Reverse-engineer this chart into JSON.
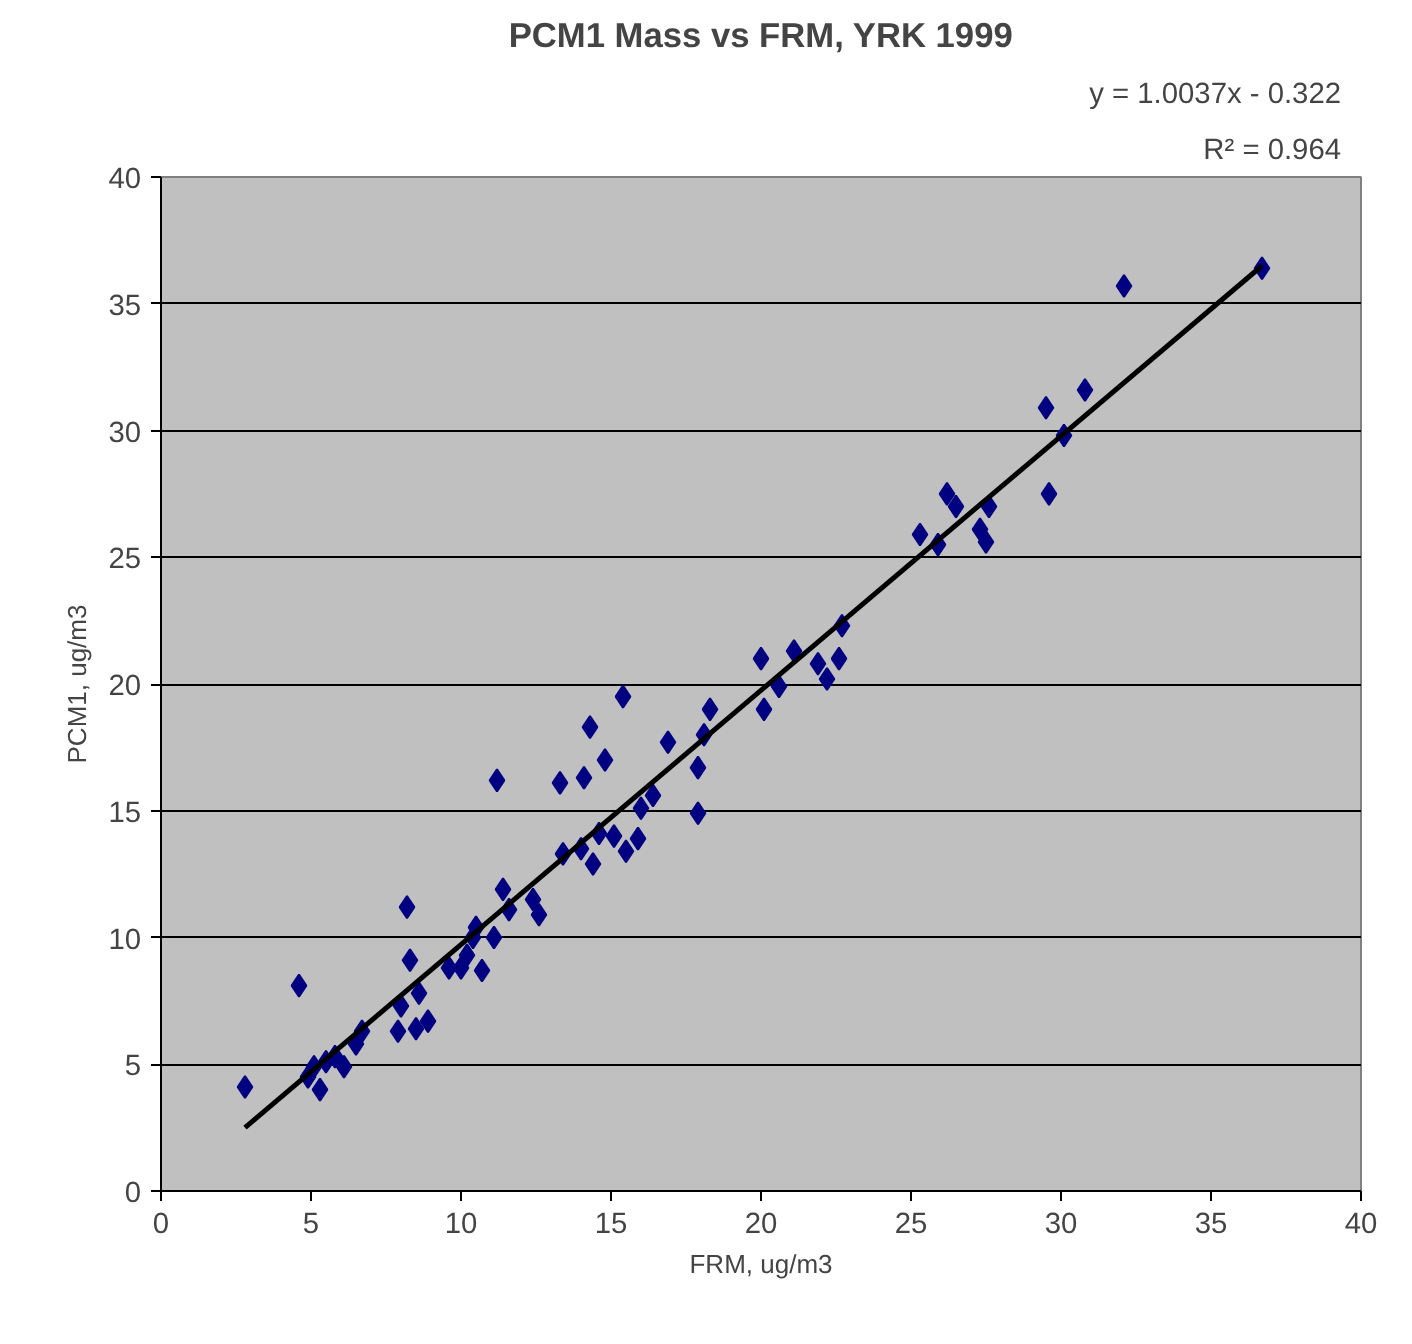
{
  "chart_data": {
    "type": "scatter",
    "title": "PCM1 Mass vs FRM, YRK 1999",
    "xlabel": "FRM, ug/m3",
    "ylabel": "PCM1, ug/m3",
    "annotations": [
      "y = 1.0037x - 0.322",
      "R² = 0.964"
    ],
    "xlim": [
      0,
      40
    ],
    "ylim": [
      0,
      40
    ],
    "xticks": [
      0,
      5,
      10,
      15,
      20,
      25,
      30,
      35,
      40
    ],
    "yticks": [
      0,
      5,
      10,
      15,
      20,
      25,
      30,
      35,
      40
    ],
    "grid": "y",
    "marker": "diamond",
    "series": [
      {
        "color": "#000080",
        "x": [
          2.8,
          4.6,
          4.9,
          5.1,
          5.3,
          5.5,
          5.8,
          6.1,
          6.5,
          6.7,
          7.9,
          8.0,
          8.2,
          8.3,
          8.5,
          8.6,
          8.9,
          9.6,
          10.0,
          10.2,
          10.4,
          10.5,
          10.7,
          11.1,
          11.2,
          11.4,
          11.6,
          12.4,
          12.6,
          13.3,
          13.4,
          14.0,
          14.1,
          14.3,
          14.4,
          14.6,
          14.8,
          15.1,
          15.4,
          15.5,
          15.9,
          16.0,
          16.4,
          16.9,
          17.9,
          17.9,
          18.1,
          18.3,
          20.0,
          20.1,
          20.6,
          21.1,
          21.9,
          22.2,
          22.6,
          22.7,
          25.3,
          25.9,
          26.2,
          26.5,
          27.3,
          27.5,
          27.6,
          29.5,
          29.6,
          30.1,
          30.8,
          32.1,
          36.7
        ],
        "values": [
          4.1,
          8.1,
          4.5,
          4.9,
          4.0,
          5.1,
          5.3,
          4.9,
          5.8,
          6.3,
          6.3,
          7.3,
          11.2,
          9.1,
          6.4,
          7.8,
          6.7,
          8.8,
          8.8,
          9.3,
          10.0,
          10.4,
          8.7,
          10.0,
          16.2,
          11.9,
          11.1,
          11.5,
          10.9,
          16.1,
          13.3,
          13.5,
          16.3,
          18.3,
          12.9,
          14.1,
          17.0,
          14.0,
          19.5,
          13.4,
          13.9,
          15.1,
          15.6,
          17.7,
          14.9,
          16.7,
          18.0,
          19.0,
          21.0,
          19.0,
          19.9,
          21.3,
          20.8,
          20.2,
          21.0,
          22.3,
          25.9,
          25.5,
          27.5,
          27.0,
          26.1,
          25.6,
          27.0,
          30.9,
          27.5,
          29.8,
          31.6,
          35.7,
          36.4
        ]
      },
      {
        "type": "line",
        "marker": "none",
        "color": "#000000",
        "x": [
          2.8,
          36.7
        ],
        "values": [
          2.5,
          36.5
        ]
      }
    ]
  }
}
